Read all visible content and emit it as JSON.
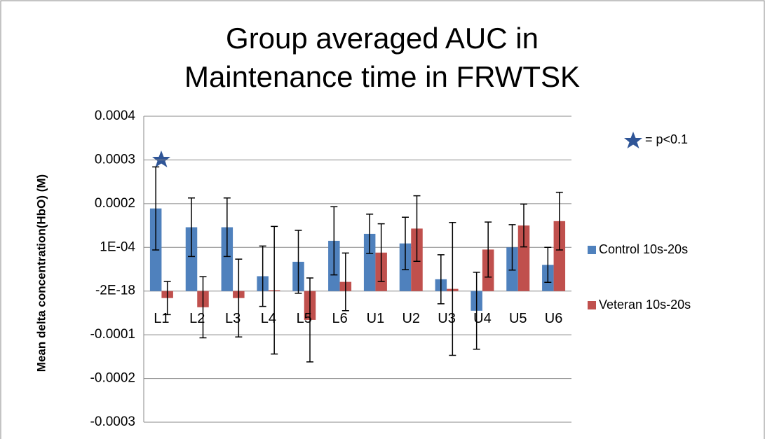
{
  "chart_data": {
    "type": "bar",
    "title": [
      "Group averaged  AUC in",
      "Maintenance time in FRWTSK"
    ],
    "y_label": "Mean delta concentration(HbO) (M)",
    "annotation": "= p<0.1",
    "categories": [
      "L1",
      "L2",
      "L3",
      "L4",
      "L5",
      "L6",
      "U1",
      "U2",
      "U3",
      "U4",
      "U5",
      "U6"
    ],
    "series": [
      {
        "name": "Control 10s-20s",
        "color": "#4f81bd",
        "values": [
          0.000189,
          0.000146,
          0.000146,
          3.4e-05,
          6.7e-05,
          0.000115,
          0.000131,
          0.000109,
          2.7e-05,
          -4.5e-05,
          0.0001,
          6e-05
        ],
        "errors": [
          9.5e-05,
          6.7e-05,
          6.7e-05,
          6.9e-05,
          7.2e-05,
          7.8e-05,
          4.5e-05,
          6e-05,
          5.6e-05,
          8.8e-05,
          5.2e-05,
          4e-05
        ]
      },
      {
        "name": "Veteran 10s-20s",
        "color": "#c0504d",
        "values": [
          -1.6e-05,
          -3.7e-05,
          -1.6e-05,
          2e-06,
          -6.6e-05,
          2.1e-05,
          8.8e-05,
          0.000143,
          5e-06,
          9.5e-05,
          0.00015,
          0.00016
        ],
        "errors": [
          3.8e-05,
          7e-05,
          8.9e-05,
          0.000146,
          9.6e-05,
          6.6e-05,
          6.6e-05,
          7.5e-05,
          0.000152,
          6.3e-05,
          4.9e-05,
          6.6e-05
        ]
      }
    ],
    "ylim": [
      -0.0003,
      0.0004
    ],
    "yticks": [
      -0.0003,
      -0.0002,
      -0.0001,
      {
        "value": -2e-18,
        "label": "-2E-18"
      },
      {
        "value": 0.0001,
        "label": "1E-04"
      },
      0.0002,
      0.0003,
      0.0004
    ],
    "grid": true
  }
}
